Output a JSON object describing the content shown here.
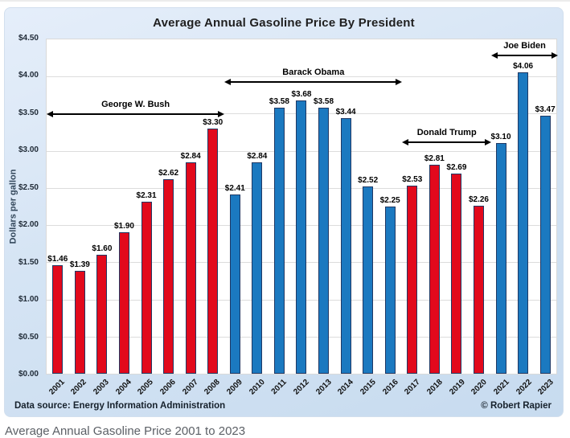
{
  "page": {
    "caption": "Average Annual Gasoline Price 2001 to 2023"
  },
  "chart": {
    "footer": {
      "data_source": "Data source: Energy Information Administration",
      "copyright": "© Robert Rapier"
    },
    "colors": {
      "republican_bar": "#e2091c",
      "democrat_bar": "#1b79c0",
      "bar_border": "#1f3864",
      "card_background_top": "#e5eefa",
      "card_background_bottom": "#c7dbef",
      "plot_background": "#ffffff",
      "gridline": "#dcdcdc",
      "annotation_arrow": "#000000"
    }
  },
  "chart_data": {
    "type": "bar",
    "title": "Average Annual Gasoline Price By President",
    "xlabel": "",
    "ylabel": "Dollars per gallon",
    "ylim": [
      0,
      4.5
    ],
    "ytick_step": 0.5,
    "ytick_labels": [
      "$0.00",
      "$0.50",
      "$1.00",
      "$1.50",
      "$2.00",
      "$2.50",
      "$3.00",
      "$3.50",
      "$4.00",
      "$4.50"
    ],
    "grid": true,
    "legend_position": "none",
    "categories": [
      "2001",
      "2002",
      "2003",
      "2004",
      "2005",
      "2006",
      "2007",
      "2008",
      "2009",
      "2010",
      "2011",
      "2012",
      "2013",
      "2014",
      "2015",
      "2016",
      "2017",
      "2018",
      "2019",
      "2020",
      "2021",
      "2022",
      "2023"
    ],
    "values": [
      1.46,
      1.39,
      1.6,
      1.9,
      2.31,
      2.62,
      2.84,
      3.3,
      2.41,
      2.84,
      3.58,
      3.68,
      3.58,
      3.44,
      2.52,
      2.25,
      2.53,
      2.81,
      2.69,
      2.26,
      3.1,
      4.06,
      3.47
    ],
    "data_label_prefix": "$",
    "parties": [
      "R",
      "R",
      "R",
      "R",
      "R",
      "R",
      "R",
      "R",
      "D",
      "D",
      "D",
      "D",
      "D",
      "D",
      "D",
      "D",
      "R",
      "R",
      "R",
      "R",
      "D",
      "D",
      "D"
    ],
    "annotations": [
      {
        "label": "George W. Bush",
        "from": "2001",
        "to": "2008",
        "arrow_y": 3.47
      },
      {
        "label": "Barack Obama",
        "from": "2009",
        "to": "2016",
        "arrow_y": 3.9
      },
      {
        "label": "Donald Trump",
        "from": "2017",
        "to": "2020",
        "arrow_y": 3.09
      },
      {
        "label": "Joe Biden",
        "from": "2021",
        "to": "2023",
        "arrow_y": 4.25
      }
    ]
  }
}
